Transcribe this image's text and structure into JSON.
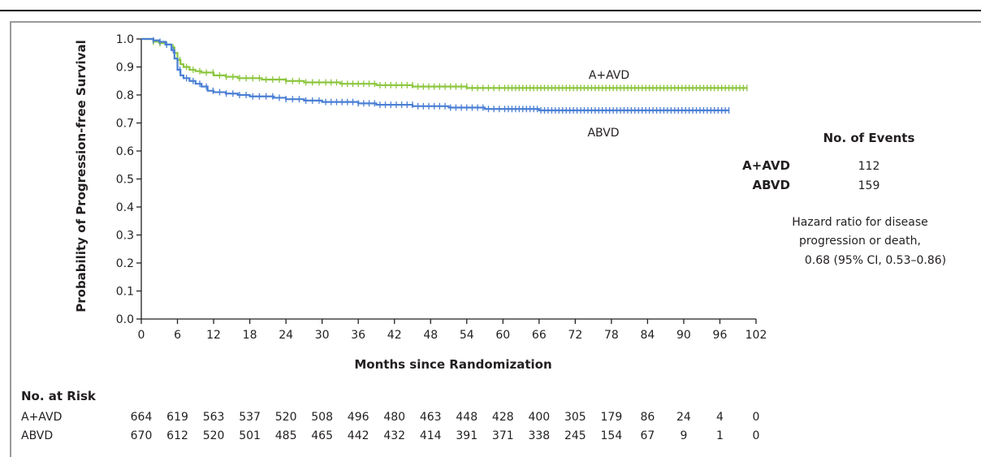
{
  "colors": {
    "a_avd": "#8cc63f",
    "abvd": "#4a7fd4",
    "axis": "#231f20"
  },
  "chart_data": {
    "type": "line",
    "xlabel": "Months since Randomization",
    "ylabel": "Probability of Progression-free Survival",
    "xlim": [
      0,
      102
    ],
    "ylim": [
      0.0,
      1.0
    ],
    "xticks": [
      "0",
      "6",
      "12",
      "18",
      "24",
      "30",
      "36",
      "42",
      "48",
      "54",
      "60",
      "66",
      "72",
      "78",
      "84",
      "90",
      "96",
      "102"
    ],
    "yticks": [
      "0.0",
      "0.1",
      "0.2",
      "0.3",
      "0.4",
      "0.5",
      "0.6",
      "0.7",
      "0.8",
      "0.9",
      "1.0"
    ],
    "series": [
      {
        "name": "A+AVD",
        "color": "#8cc63f",
        "x": [
          0,
          1,
          2,
          3,
          4,
          5,
          5.5,
          6,
          6.5,
          7,
          8,
          9,
          10,
          12,
          14,
          16,
          18,
          20,
          22,
          24,
          27,
          30,
          33,
          36,
          39,
          42,
          45,
          48,
          51,
          54,
          57,
          60,
          66,
          72,
          78,
          84,
          90,
          96,
          100.5
        ],
        "y": [
          1.0,
          1.0,
          0.99,
          0.985,
          0.98,
          0.97,
          0.95,
          0.925,
          0.91,
          0.9,
          0.89,
          0.885,
          0.88,
          0.87,
          0.865,
          0.86,
          0.86,
          0.855,
          0.855,
          0.85,
          0.845,
          0.845,
          0.84,
          0.84,
          0.835,
          0.835,
          0.83,
          0.83,
          0.83,
          0.825,
          0.825,
          0.825,
          0.825,
          0.825,
          0.825,
          0.825,
          0.825,
          0.825,
          0.825
        ]
      },
      {
        "name": "ABVD",
        "color": "#4a7fd4",
        "x": [
          0,
          1,
          2,
          3,
          4,
          5,
          5.5,
          6,
          6.5,
          7,
          8,
          9,
          10,
          11,
          12,
          14,
          16,
          18,
          20,
          22,
          24,
          27,
          30,
          33,
          36,
          39,
          42,
          45,
          48,
          51,
          54,
          57,
          60,
          66,
          72,
          78,
          84,
          90,
          94,
          97.5
        ],
        "y": [
          1.0,
          1.0,
          0.995,
          0.99,
          0.98,
          0.96,
          0.93,
          0.89,
          0.87,
          0.86,
          0.85,
          0.84,
          0.83,
          0.815,
          0.81,
          0.805,
          0.8,
          0.795,
          0.795,
          0.79,
          0.785,
          0.78,
          0.775,
          0.775,
          0.77,
          0.765,
          0.765,
          0.76,
          0.76,
          0.755,
          0.755,
          0.75,
          0.75,
          0.745,
          0.745,
          0.745,
          0.745,
          0.745,
          0.745,
          0.745
        ]
      }
    ]
  },
  "labels": {
    "a_avd": "A+AVD",
    "abvd": "ABVD"
  },
  "events": {
    "title": "No. of Events",
    "rows": [
      {
        "name": "A+AVD",
        "value": "112"
      },
      {
        "name": "ABVD",
        "value": "159"
      }
    ]
  },
  "hazard": {
    "lines": [
      "Hazard ratio for disease",
      "progression or death,",
      "0.68 (95% CI, 0.53–0.86)"
    ]
  },
  "risk": {
    "title": "No. at Risk",
    "rows": [
      {
        "name": "A+AVD",
        "values": [
          "664",
          "619",
          "563",
          "537",
          "520",
          "508",
          "496",
          "480",
          "463",
          "448",
          "428",
          "400",
          "305",
          "179",
          "86",
          "24",
          "4",
          "0"
        ]
      },
      {
        "name": "ABVD",
        "values": [
          "670",
          "612",
          "520",
          "501",
          "485",
          "465",
          "442",
          "432",
          "414",
          "391",
          "371",
          "338",
          "245",
          "154",
          "67",
          "9",
          "1",
          "0"
        ]
      }
    ]
  }
}
